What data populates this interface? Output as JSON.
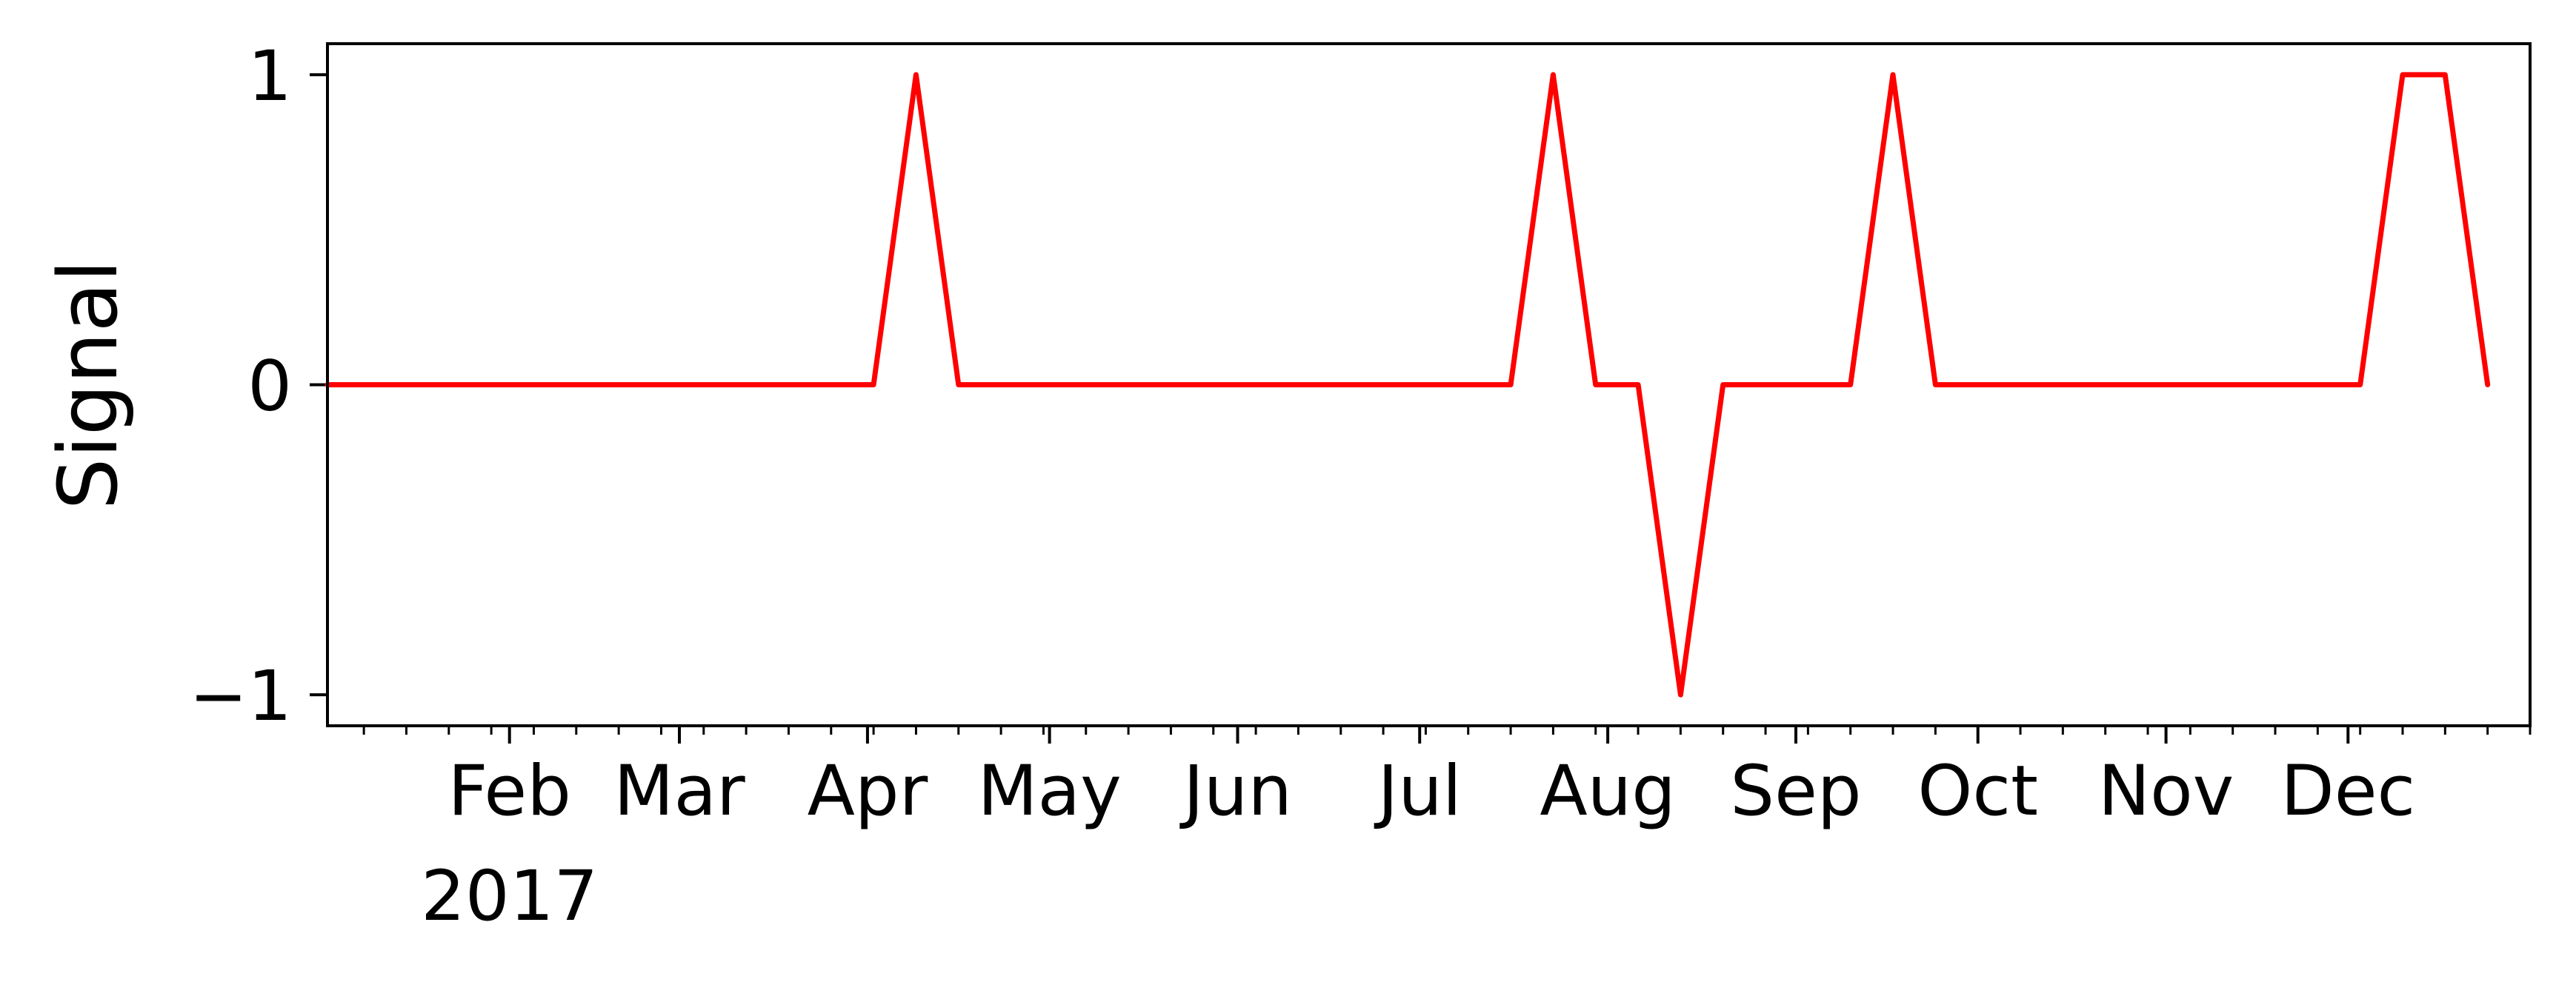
{
  "chart_data": {
    "type": "line",
    "title": "",
    "xlabel": "",
    "ylabel": "Signal",
    "xlim": [
      "2017-01-02",
      "2017-12-31"
    ],
    "ylim": [
      -1.1,
      1.1
    ],
    "grid": false,
    "legend": "none",
    "x_year_label": "2017",
    "x_ticks": [
      {
        "date": "2017-02-01",
        "label": "Feb"
      },
      {
        "date": "2017-03-01",
        "label": "Mar"
      },
      {
        "date": "2017-04-01",
        "label": "Apr"
      },
      {
        "date": "2017-05-01",
        "label": "May"
      },
      {
        "date": "2017-06-01",
        "label": "Jun"
      },
      {
        "date": "2017-07-01",
        "label": "Jul"
      },
      {
        "date": "2017-08-01",
        "label": "Aug"
      },
      {
        "date": "2017-09-01",
        "label": "Sep"
      },
      {
        "date": "2017-10-01",
        "label": "Oct"
      },
      {
        "date": "2017-11-01",
        "label": "Nov"
      },
      {
        "date": "2017-12-01",
        "label": "Dec"
      }
    ],
    "y_ticks": [
      {
        "value": 1,
        "label": "1"
      },
      {
        "value": 0,
        "label": "0"
      },
      {
        "value": -1,
        "label": "−1"
      }
    ],
    "series": [
      {
        "color": "#ff0000",
        "x": [
          "2017-01-02",
          "2017-04-02",
          "2017-04-09",
          "2017-04-16",
          "2017-07-16",
          "2017-07-23",
          "2017-07-30",
          "2017-08-06",
          "2017-08-13",
          "2017-08-20",
          "2017-09-10",
          "2017-09-17",
          "2017-09-24",
          "2017-12-03",
          "2017-12-10",
          "2017-12-17",
          "2017-12-24"
        ],
        "values": [
          0,
          0,
          1,
          0,
          0,
          1,
          0,
          0,
          -1,
          0,
          0,
          1,
          0,
          0,
          1,
          1,
          0
        ]
      }
    ]
  }
}
